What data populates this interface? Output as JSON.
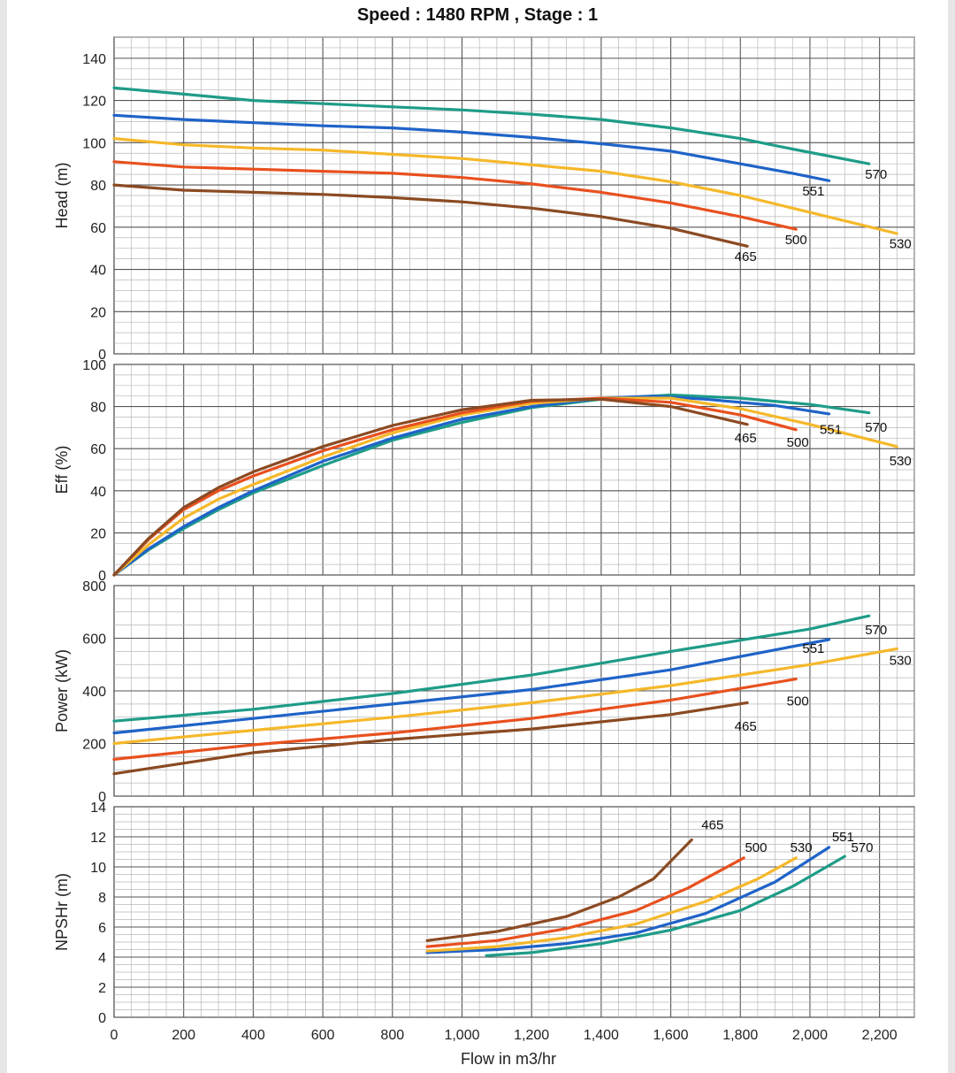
{
  "title": "Speed : 1480 RPM , Stage : 1",
  "chart_data": {
    "type": "line",
    "title": "Speed : 1480 RPM , Stage : 1",
    "xlabel": "Flow in m3/hr",
    "xlim": [
      0,
      2300
    ],
    "xticks": [
      0,
      200,
      400,
      600,
      800,
      1000,
      1200,
      1400,
      1600,
      1800,
      2000,
      2200
    ],
    "xtick_labels": [
      "0",
      "200",
      "400",
      "600",
      "800",
      "1,000",
      "1,200",
      "1,400",
      "1,600",
      "1,800",
      "2,000",
      "2,200"
    ],
    "grid": true,
    "series_colors": {
      "465": "#8b4a22",
      "500": "#e8501e",
      "530": "#f5b82a",
      "551": "#1f63c8",
      "570": "#1e9c88"
    },
    "panels": [
      {
        "name": "head",
        "ylabel": "Head (m)",
        "ylim": [
          0,
          150
        ],
        "yticks": [
          0,
          20,
          40,
          60,
          80,
          100,
          120,
          140
        ],
        "series": [
          {
            "name": "570",
            "points": [
              [
                0,
                126
              ],
              [
                200,
                123
              ],
              [
                400,
                120
              ],
              [
                600,
                118.5
              ],
              [
                800,
                117
              ],
              [
                1000,
                115.5
              ],
              [
                1200,
                113.5
              ],
              [
                1400,
                111
              ],
              [
                1600,
                107
              ],
              [
                1800,
                102
              ],
              [
                1950,
                97
              ],
              [
                2170,
                90
              ]
            ]
          },
          {
            "name": "551",
            "points": [
              [
                0,
                113
              ],
              [
                200,
                111
              ],
              [
                400,
                109.5
              ],
              [
                600,
                108
              ],
              [
                800,
                107
              ],
              [
                1000,
                105
              ],
              [
                1200,
                102.5
              ],
              [
                1400,
                99.5
              ],
              [
                1600,
                96
              ],
              [
                1800,
                90
              ],
              [
                1950,
                85.5
              ],
              [
                2055,
                82
              ]
            ]
          },
          {
            "name": "530",
            "points": [
              [
                0,
                102
              ],
              [
                200,
                99
              ],
              [
                400,
                97.5
              ],
              [
                600,
                96.5
              ],
              [
                800,
                94.5
              ],
              [
                1000,
                92.5
              ],
              [
                1200,
                89.5
              ],
              [
                1400,
                86.5
              ],
              [
                1600,
                81.5
              ],
              [
                1800,
                75
              ],
              [
                2000,
                67
              ],
              [
                2250,
                57
              ]
            ]
          },
          {
            "name": "500",
            "points": [
              [
                0,
                91
              ],
              [
                200,
                88.5
              ],
              [
                400,
                87.5
              ],
              [
                600,
                86.5
              ],
              [
                800,
                85.5
              ],
              [
                1000,
                83.5
              ],
              [
                1200,
                80.5
              ],
              [
                1400,
                76.5
              ],
              [
                1600,
                71.5
              ],
              [
                1800,
                65
              ],
              [
                1960,
                59
              ]
            ]
          },
          {
            "name": "465",
            "points": [
              [
                0,
                80
              ],
              [
                200,
                77.5
              ],
              [
                400,
                76.5
              ],
              [
                600,
                75.5
              ],
              [
                800,
                74
              ],
              [
                1000,
                72
              ],
              [
                1200,
                69
              ],
              [
                1400,
                65
              ],
              [
                1600,
                59.5
              ],
              [
                1820,
                51
              ]
            ]
          }
        ],
        "labels": [
          {
            "text": "570",
            "x": 2190,
            "y": 83
          },
          {
            "text": "551",
            "x": 2010,
            "y": 75
          },
          {
            "text": "530",
            "x": 2260,
            "y": 50
          },
          {
            "text": "500",
            "x": 1960,
            "y": 52
          },
          {
            "text": "465",
            "x": 1815,
            "y": 44
          }
        ]
      },
      {
        "name": "eff",
        "ylabel": "Eff (%)",
        "ylim": [
          0,
          100
        ],
        "yticks": [
          0,
          20,
          40,
          60,
          80,
          100
        ],
        "series": [
          {
            "name": "570",
            "points": [
              [
                0,
                0
              ],
              [
                100,
                12
              ],
              [
                200,
                22
              ],
              [
                300,
                31
              ],
              [
                400,
                39
              ],
              [
                600,
                52
              ],
              [
                800,
                64
              ],
              [
                1000,
                72.5
              ],
              [
                1200,
                79.5
              ],
              [
                1400,
                83.5
              ],
              [
                1600,
                85.5
              ],
              [
                1800,
                84
              ],
              [
                2000,
                81
              ],
              [
                2170,
                77
              ]
            ]
          },
          {
            "name": "551",
            "points": [
              [
                0,
                0
              ],
              [
                100,
                12.5
              ],
              [
                200,
                23
              ],
              [
                300,
                32
              ],
              [
                400,
                40
              ],
              [
                600,
                54
              ],
              [
                800,
                65
              ],
              [
                1000,
                74
              ],
              [
                1200,
                80
              ],
              [
                1400,
                84
              ],
              [
                1550,
                85
              ],
              [
                1700,
                83.5
              ],
              [
                1900,
                80.5
              ],
              [
                2055,
                76.5
              ]
            ]
          },
          {
            "name": "530",
            "points": [
              [
                0,
                0
              ],
              [
                100,
                14.5
              ],
              [
                200,
                27
              ],
              [
                300,
                36
              ],
              [
                400,
                43
              ],
              [
                600,
                56
              ],
              [
                800,
                67.5
              ],
              [
                1000,
                76
              ],
              [
                1200,
                81.5
              ],
              [
                1400,
                84
              ],
              [
                1600,
                84
              ],
              [
                1800,
                79
              ],
              [
                2000,
                71.5
              ],
              [
                2250,
                61
              ]
            ]
          },
          {
            "name": "500",
            "points": [
              [
                0,
                0
              ],
              [
                100,
                17
              ],
              [
                200,
                31
              ],
              [
                300,
                40
              ],
              [
                400,
                47
              ],
              [
                600,
                59
              ],
              [
                800,
                69
              ],
              [
                1000,
                77
              ],
              [
                1200,
                82.5
              ],
              [
                1400,
                84
              ],
              [
                1600,
                82
              ],
              [
                1800,
                76
              ],
              [
                1960,
                69
              ]
            ]
          },
          {
            "name": "465",
            "points": [
              [
                0,
                0
              ],
              [
                100,
                17.5
              ],
              [
                200,
                32
              ],
              [
                300,
                41.5
              ],
              [
                400,
                49
              ],
              [
                600,
                61
              ],
              [
                800,
                71
              ],
              [
                1000,
                78.5
              ],
              [
                1200,
                83
              ],
              [
                1400,
                83.5
              ],
              [
                1600,
                80
              ],
              [
                1820,
                71.5
              ]
            ]
          }
        ],
        "labels": [
          {
            "text": "570",
            "x": 2190,
            "y": 68
          },
          {
            "text": "551",
            "x": 2060,
            "y": 67
          },
          {
            "text": "530",
            "x": 2260,
            "y": 52
          },
          {
            "text": "500",
            "x": 1965,
            "y": 61
          },
          {
            "text": "465",
            "x": 1815,
            "y": 63
          }
        ]
      },
      {
        "name": "power",
        "ylabel": "Power (kW)",
        "ylim": [
          0,
          800
        ],
        "yticks": [
          0,
          200,
          400,
          600,
          800
        ],
        "series": [
          {
            "name": "570",
            "points": [
              [
                0,
                285
              ],
              [
                400,
                330
              ],
              [
                800,
                390
              ],
              [
                1200,
                460
              ],
              [
                1600,
                550
              ],
              [
                2000,
                635
              ],
              [
                2170,
                685
              ]
            ]
          },
          {
            "name": "551",
            "points": [
              [
                0,
                240
              ],
              [
                400,
                295
              ],
              [
                800,
                350
              ],
              [
                1200,
                405
              ],
              [
                1600,
                480
              ],
              [
                2055,
                595
              ]
            ]
          },
          {
            "name": "530",
            "points": [
              [
                0,
                200
              ],
              [
                400,
                250
              ],
              [
                800,
                300
              ],
              [
                1200,
                355
              ],
              [
                1600,
                420
              ],
              [
                2000,
                500
              ],
              [
                2250,
                560
              ]
            ]
          },
          {
            "name": "500",
            "points": [
              [
                0,
                140
              ],
              [
                400,
                195
              ],
              [
                800,
                240
              ],
              [
                1200,
                295
              ],
              [
                1600,
                365
              ],
              [
                1960,
                445
              ]
            ]
          },
          {
            "name": "465",
            "points": [
              [
                0,
                85
              ],
              [
                400,
                165
              ],
              [
                800,
                215
              ],
              [
                1200,
                255
              ],
              [
                1600,
                310
              ],
              [
                1820,
                355
              ]
            ]
          }
        ],
        "labels": [
          {
            "text": "570",
            "x": 2190,
            "y": 615
          },
          {
            "text": "551",
            "x": 2010,
            "y": 545
          },
          {
            "text": "530",
            "x": 2260,
            "y": 500
          },
          {
            "text": "500",
            "x": 1965,
            "y": 345
          },
          {
            "text": "465",
            "x": 1815,
            "y": 248
          }
        ]
      },
      {
        "name": "npshr",
        "ylabel": "NPSHr (m)",
        "ylim": [
          0,
          14
        ],
        "yticks": [
          0,
          2,
          4,
          6,
          8,
          10,
          12,
          14
        ],
        "series": [
          {
            "name": "570",
            "points": [
              [
                1070,
                4.1
              ],
              [
                1200,
                4.3
              ],
              [
                1400,
                4.9
              ],
              [
                1600,
                5.8
              ],
              [
                1800,
                7.1
              ],
              [
                1950,
                8.7
              ],
              [
                2100,
                10.7
              ]
            ]
          },
          {
            "name": "551",
            "points": [
              [
                900,
                4.3
              ],
              [
                1100,
                4.5
              ],
              [
                1300,
                4.9
              ],
              [
                1500,
                5.6
              ],
              [
                1700,
                6.9
              ],
              [
                1900,
                9.0
              ],
              [
                2055,
                11.3
              ]
            ]
          },
          {
            "name": "530",
            "points": [
              [
                900,
                4.4
              ],
              [
                1100,
                4.7
              ],
              [
                1300,
                5.3
              ],
              [
                1500,
                6.2
              ],
              [
                1700,
                7.7
              ],
              [
                1850,
                9.2
              ],
              [
                1960,
                10.6
              ]
            ]
          },
          {
            "name": "500",
            "points": [
              [
                900,
                4.7
              ],
              [
                1100,
                5.1
              ],
              [
                1300,
                5.9
              ],
              [
                1500,
                7.1
              ],
              [
                1650,
                8.6
              ],
              [
                1810,
                10.6
              ]
            ]
          },
          {
            "name": "465",
            "points": [
              [
                900,
                5.1
              ],
              [
                1100,
                5.7
              ],
              [
                1300,
                6.7
              ],
              [
                1450,
                8.0
              ],
              [
                1550,
                9.2
              ],
              [
                1660,
                11.8
              ]
            ]
          }
        ],
        "labels": [
          {
            "text": "465",
            "x": 1720,
            "y": 12.5
          },
          {
            "text": "500",
            "x": 1845,
            "y": 11.0
          },
          {
            "text": "530",
            "x": 1975,
            "y": 11.0
          },
          {
            "text": "551",
            "x": 2095,
            "y": 11.7
          },
          {
            "text": "570",
            "x": 2150,
            "y": 11.0
          }
        ]
      }
    ]
  }
}
